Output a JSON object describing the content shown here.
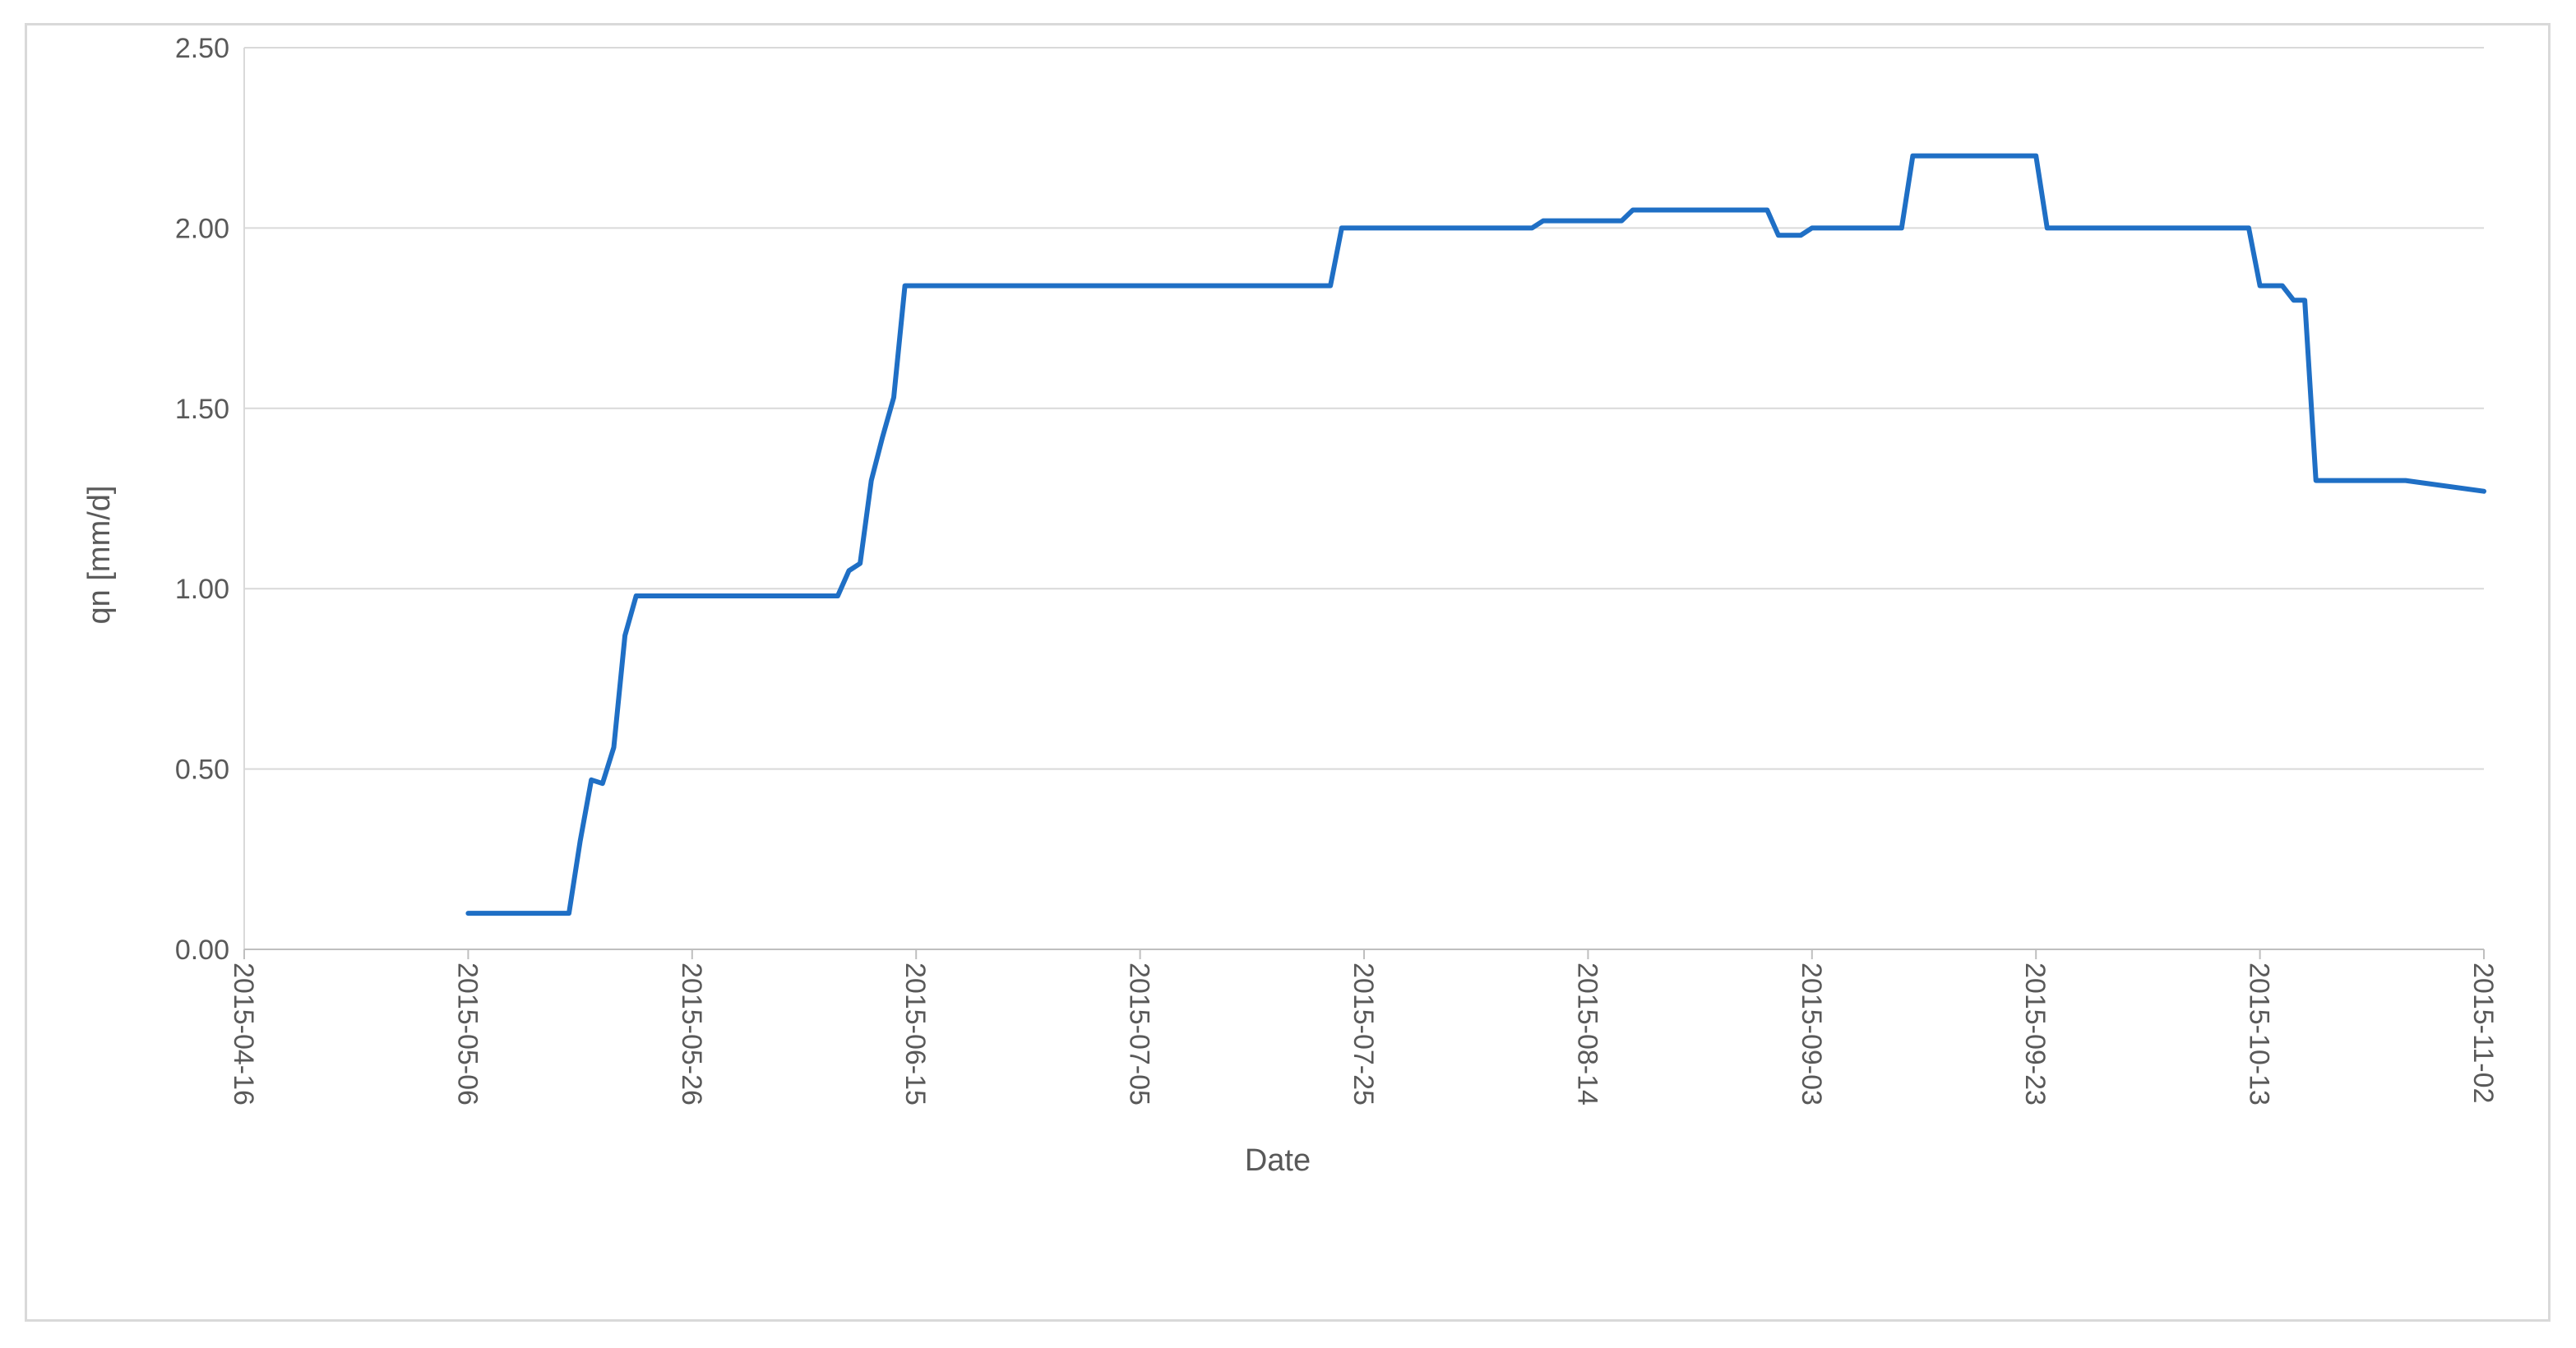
{
  "chart_data": {
    "type": "line",
    "title": "",
    "xlabel": "Date",
    "ylabel": "qn [mm/d]",
    "ylim": [
      0,
      2.5
    ],
    "yticks": [
      0,
      0.5,
      1.0,
      1.5,
      2.0,
      2.5
    ],
    "ytick_labels": [
      "0.00",
      "0.50",
      "1.00",
      "1.50",
      "2.00",
      "2.50"
    ],
    "xlim": [
      "2015-04-16",
      "2015-11-02"
    ],
    "xticks": [
      "2015-04-16",
      "2015-05-06",
      "2015-05-26",
      "2015-06-15",
      "2015-07-05",
      "2015-07-25",
      "2015-08-14",
      "2015-09-03",
      "2015-09-23",
      "2015-10-13",
      "2015-11-02"
    ],
    "grid": "horizontal",
    "legend": "none",
    "line_color": "#1f6fc5",
    "series": [
      {
        "x": [
          "2015-05-06",
          "2015-05-15",
          "2015-05-16",
          "2015-05-17",
          "2015-05-18",
          "2015-05-19",
          "2015-05-20",
          "2015-05-21",
          "2015-05-22",
          "2015-05-23",
          "2015-05-24",
          "2015-05-25",
          "2015-05-26",
          "2015-06-08",
          "2015-06-09",
          "2015-06-10",
          "2015-06-11",
          "2015-06-12",
          "2015-06-13",
          "2015-06-14",
          "2015-06-15",
          "2015-06-16",
          "2015-06-17",
          "2015-07-21",
          "2015-07-22",
          "2015-07-23",
          "2015-07-24",
          "2015-08-09",
          "2015-08-10",
          "2015-08-17",
          "2015-08-18",
          "2015-08-30",
          "2015-08-31",
          "2015-09-01",
          "2015-09-02",
          "2015-09-03",
          "2015-09-04",
          "2015-09-11",
          "2015-09-12",
          "2015-09-13",
          "2015-09-22",
          "2015-09-23",
          "2015-09-24",
          "2015-10-11",
          "2015-10-12",
          "2015-10-13",
          "2015-10-14",
          "2015-10-15",
          "2015-10-16",
          "2015-10-17",
          "2015-10-18",
          "2015-10-19",
          "2015-10-20",
          "2015-10-26",
          "2015-11-02"
        ],
        "y": [
          0.1,
          0.1,
          0.3,
          0.47,
          0.46,
          0.56,
          0.87,
          0.98,
          0.98,
          0.98,
          0.98,
          0.98,
          0.98,
          0.98,
          1.05,
          1.07,
          1.3,
          1.42,
          1.53,
          1.84,
          1.84,
          1.84,
          1.84,
          1.84,
          1.84,
          2.0,
          2.0,
          2.0,
          2.02,
          2.02,
          2.05,
          2.05,
          1.98,
          1.98,
          1.98,
          2.0,
          2.0,
          2.0,
          2.2,
          2.2,
          2.2,
          2.2,
          2.0,
          2.0,
          2.0,
          1.84,
          1.84,
          1.84,
          1.8,
          1.8,
          1.3,
          1.3,
          1.3,
          1.3,
          1.27
        ]
      }
    ]
  }
}
